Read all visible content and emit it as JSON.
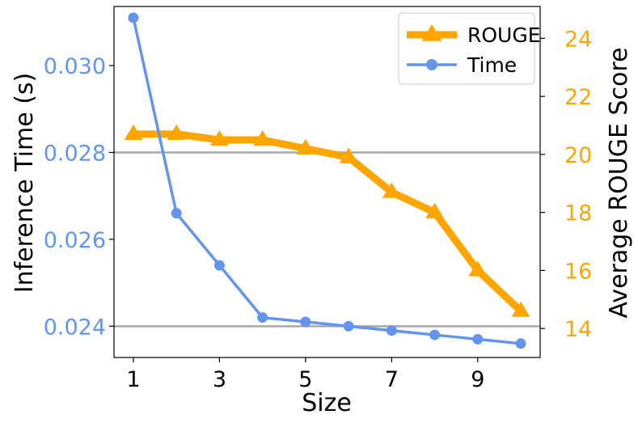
{
  "chart_data": {
    "type": "line",
    "xlabel": "Size",
    "y_left_label": "Inference Time (s)",
    "y_right_label": "Average ROUGE Score",
    "x": [
      1,
      2,
      3,
      4,
      5,
      6,
      7,
      8,
      9,
      10
    ],
    "x_ticks": [
      "1",
      "3",
      "5",
      "7",
      "9"
    ],
    "x_tick_values": [
      1,
      3,
      5,
      7,
      9
    ],
    "xlim": [
      0.55,
      10.45
    ],
    "y_left_lim": [
      0.02328,
      0.03136
    ],
    "y_left_ticks": [
      "0.024",
      "0.026",
      "0.028",
      "0.030"
    ],
    "y_left_tick_values": [
      0.024,
      0.026,
      0.028,
      0.03
    ],
    "y_right_lim": [
      13.0,
      25.1
    ],
    "y_right_ticks": [
      "14",
      "16",
      "18",
      "20",
      "22",
      "24"
    ],
    "y_right_tick_values": [
      14,
      16,
      18,
      20,
      22,
      24
    ],
    "hlines_left_axis": [
      0.024,
      0.028
    ],
    "grid": false,
    "legend_position": "top-right",
    "series": [
      {
        "name": "ROUGE",
        "axis": "right",
        "marker": "triangle",
        "color": "#FFA500",
        "values": [
          20.7,
          20.7,
          20.5,
          20.5,
          20.2,
          19.9,
          18.7,
          18.0,
          16.0,
          14.6
        ]
      },
      {
        "name": "Time",
        "axis": "left",
        "marker": "circle",
        "color": "#6495ED",
        "values": [
          0.0311,
          0.0266,
          0.0254,
          0.0242,
          0.0241,
          0.024,
          0.0239,
          0.0238,
          0.0237,
          0.0236
        ]
      }
    ],
    "colors": {
      "left_axis": "#6495ED",
      "right_axis": "#FFA500",
      "hline": "#A9A9A9"
    }
  }
}
